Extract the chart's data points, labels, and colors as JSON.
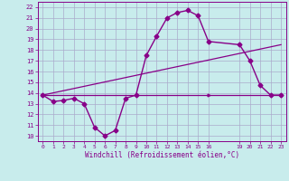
{
  "xlabel": "Windchill (Refroidissement éolien,°C)",
  "bg_color": "#c8ecec",
  "grid_color": "#aaaacc",
  "line_color": "#880088",
  "hours": [
    0,
    1,
    2,
    3,
    4,
    5,
    6,
    7,
    8,
    9,
    10,
    11,
    12,
    13,
    14,
    15,
    16,
    19,
    20,
    21,
    22,
    23
  ],
  "temp_curve": [
    13.8,
    13.2,
    13.3,
    13.5,
    13.0,
    10.8,
    10.0,
    10.5,
    13.5,
    13.8,
    17.5,
    19.3,
    21.0,
    21.5,
    21.7,
    21.2,
    18.8,
    18.5,
    17.0,
    14.7,
    13.8,
    13.8
  ],
  "line2_x": [
    0,
    23
  ],
  "line2_y": [
    13.8,
    18.5
  ],
  "line3_x": [
    0,
    16,
    23
  ],
  "line3_y": [
    13.8,
    13.8,
    13.8
  ],
  "ylim": [
    9.5,
    22.5
  ],
  "xlim": [
    -0.5,
    23.5
  ],
  "yticks": [
    10,
    11,
    12,
    13,
    14,
    15,
    16,
    17,
    18,
    19,
    20,
    21,
    22
  ],
  "xticks": [
    0,
    1,
    2,
    3,
    4,
    5,
    6,
    7,
    8,
    9,
    10,
    11,
    12,
    13,
    14,
    15,
    16,
    19,
    20,
    21,
    22,
    23
  ],
  "xtick_labels": [
    "0",
    "1",
    "2",
    "3",
    "4",
    "5",
    "6",
    "7",
    "8",
    "9",
    "10",
    "11",
    "12",
    "13",
    "14",
    "15",
    "16",
    "19",
    "20",
    "21",
    "22",
    "23"
  ]
}
